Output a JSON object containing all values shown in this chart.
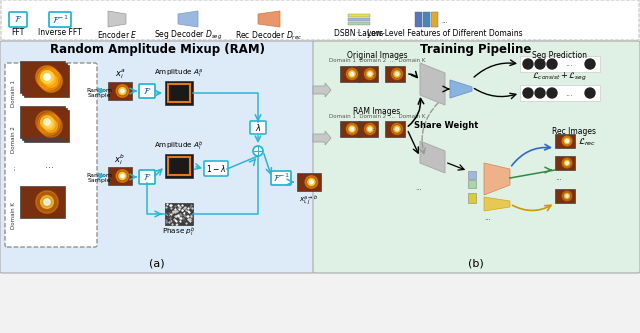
{
  "bg_color": "#f2f2f2",
  "left_panel_bg": "#ddeaf8",
  "right_panel_bg": "#dff0e4",
  "legend_bg": "#ffffff",
  "cyan": "#29b6d5",
  "orange_hi": "#e07820",
  "dark_img": "#5c2000",
  "spot_color": "#ffcc44",
  "black_dot": "#222222",
  "title_left": "Random Amplitude Mixup (RAM)",
  "title_right": "Training Pipeline",
  "cap_a": "(a)",
  "cap_b": "(b)"
}
